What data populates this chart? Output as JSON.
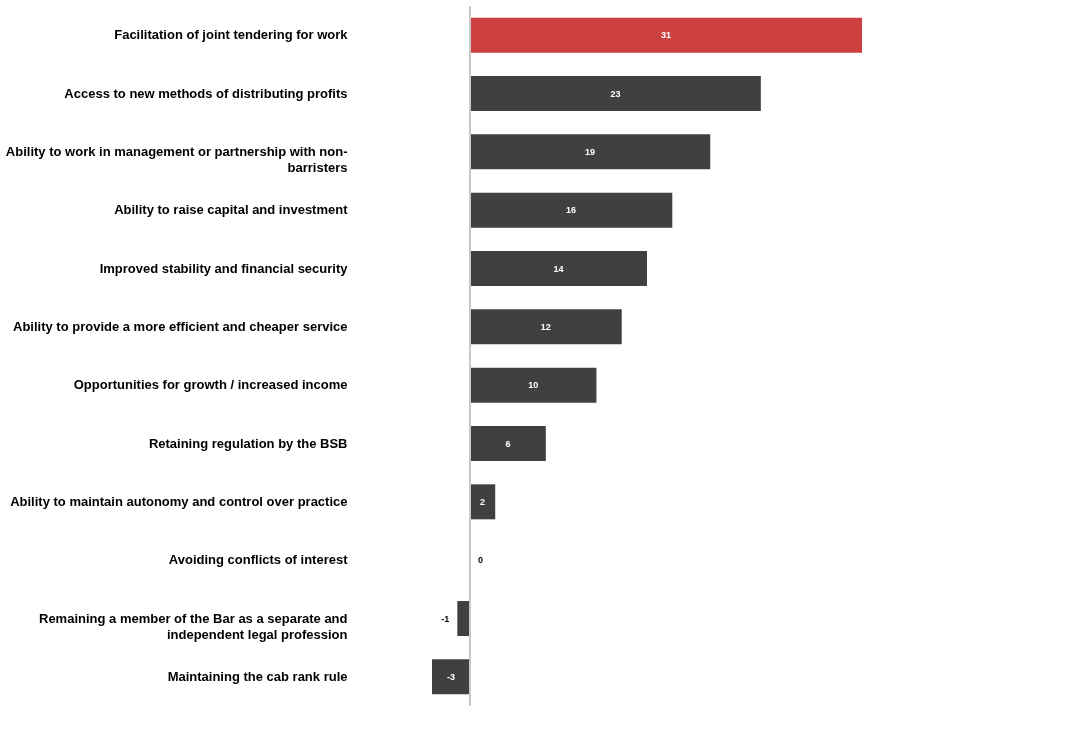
{
  "chart_data": {
    "type": "bar",
    "orientation": "horizontal",
    "data_labels": true,
    "categories": [
      "Facilitation of joint tendering for work",
      "Access to new methods of distributing profits",
      "Ability to work in management or partnership with non-barristers",
      "Ability to raise capital and investment",
      "Improved stability and financial security",
      "Ability to provide a more efficient and cheaper service",
      "Opportunities for growth / increased income",
      "Retaining regulation by the BSB",
      "Ability to maintain autonomy and control over practice",
      "Avoiding conflicts of interest",
      "Remaining a member of the Bar as a separate and independent legal profession",
      "Maintaining the cab rank rule"
    ],
    "values": [
      31,
      23,
      19,
      16,
      14,
      12,
      10,
      6,
      2,
      0,
      -1,
      -3
    ],
    "colors": [
      "#cc4040",
      "#404040",
      "#404040",
      "#404040",
      "#404040",
      "#404040",
      "#404040",
      "#404040",
      "#404040",
      "#404040",
      "#404040",
      "#404040"
    ]
  }
}
